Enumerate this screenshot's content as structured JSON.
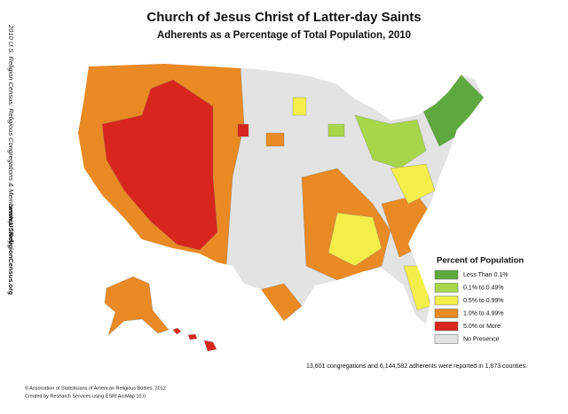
{
  "header": {
    "title": "Church of Jesus Christ of Latter-day Saints",
    "subtitle": "Adherents as a Percentage of Total Population, 2010"
  },
  "side_text": {
    "study": "2010 U.S. Religion Census: Religious Congregations & Membership Study",
    "url": "www.USReligionCensus.org"
  },
  "legend": {
    "title": "Percent of Population",
    "items": [
      {
        "label": "Less Than 0.1%",
        "color": "#5fa83f"
      },
      {
        "label": "0.1% to 0.49%",
        "color": "#a8d64a"
      },
      {
        "label": "0.5% to 0.99%",
        "color": "#f4ee4b"
      },
      {
        "label": "1.0% to 4.99%",
        "color": "#e98a24"
      },
      {
        "label": "5.0% or More",
        "color": "#d9261c"
      },
      {
        "label": "No Presence",
        "color": "#e3e3e3"
      }
    ]
  },
  "note": "13,601 congregations and 6,144,582 adherents were reported in 1,873 counties.",
  "footer": [
    "© Association of Statisticians of American Religious Bodies, 2012",
    "Created by Research Services using ESRI ArcMap 10.0"
  ]
}
